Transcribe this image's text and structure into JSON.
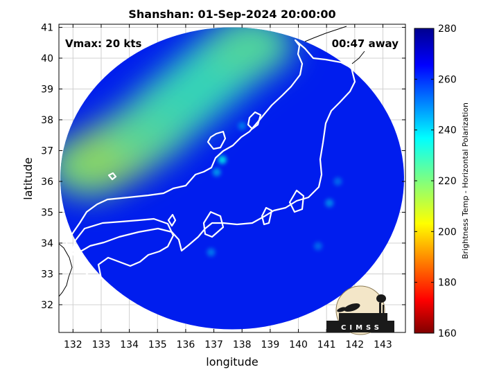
{
  "title": "Shanshan: 01-Sep-2024 20:00:00",
  "annotations": {
    "vmax": "Vmax: 20 kts",
    "time_away": "00:47 away"
  },
  "logo": {
    "text": "CIMSS"
  },
  "colors": {
    "background": "#ffffff",
    "coast": "#ffffff",
    "land_outline": "#000000",
    "grid": "#d0d0d0"
  },
  "chart_data": {
    "type": "heatmap",
    "xlabel": "longitude",
    "ylabel": "latitude",
    "xlim": [
      131.5,
      143.8
    ],
    "ylim": [
      31.1,
      41.1
    ],
    "xticks": [
      132,
      133,
      134,
      135,
      136,
      137,
      138,
      139,
      140,
      141,
      142,
      143
    ],
    "yticks": [
      32,
      33,
      34,
      35,
      36,
      37,
      38,
      39,
      40,
      41
    ],
    "grid": true,
    "colorbar": {
      "label": "Brightness Temp - Horizontal Polarization",
      "min": 160,
      "max": 280,
      "ticks": [
        160,
        180,
        200,
        220,
        240,
        260,
        280
      ],
      "colormap": "jet"
    },
    "swath": {
      "center_lon": 137.65,
      "center_lat": 36.1,
      "radius_deg_lon": 6.1,
      "radius_deg_lat": 4.9
    },
    "ocean_background_tb": 262,
    "cold_band": [
      {
        "lon": 132.6,
        "lat": 36.5,
        "tb": 218
      },
      {
        "lon": 133.6,
        "lat": 37.0,
        "tb": 214
      },
      {
        "lon": 134.6,
        "lat": 37.6,
        "tb": 222
      },
      {
        "lon": 135.6,
        "lat": 38.4,
        "tb": 226
      },
      {
        "lon": 136.5,
        "lat": 39.1,
        "tb": 228
      },
      {
        "lon": 137.4,
        "lat": 39.8,
        "tb": 228
      },
      {
        "lon": 138.3,
        "lat": 40.4,
        "tb": 224
      }
    ],
    "warm_spots": [
      {
        "lon": 137.3,
        "lat": 36.7,
        "tb": 236
      },
      {
        "lon": 137.1,
        "lat": 36.3,
        "tb": 246
      },
      {
        "lon": 141.1,
        "lat": 35.3,
        "tb": 248
      },
      {
        "lon": 138.0,
        "lat": 37.8,
        "tb": 250
      },
      {
        "lon": 136.9,
        "lat": 33.7,
        "tb": 250
      },
      {
        "lon": 141.4,
        "lat": 36.0,
        "tb": 252
      },
      {
        "lon": 140.7,
        "lat": 33.9,
        "tb": 252
      }
    ]
  }
}
